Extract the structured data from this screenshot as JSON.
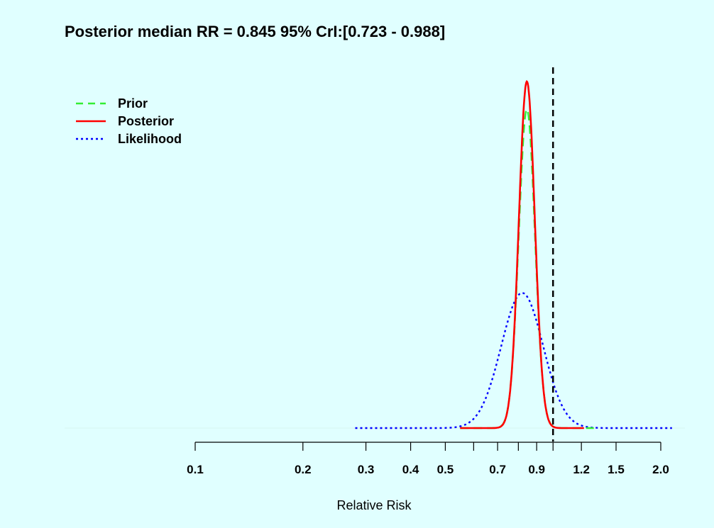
{
  "chart_data": {
    "type": "line",
    "title": "Posterior median RR = 0.845  95% CrI:[0.723 - 0.988]",
    "xlabel": "Relative Risk",
    "ylabel": "",
    "x_scale": "log",
    "xlim": [
      0.1,
      2.0
    ],
    "x_ticks": [
      0.1,
      0.2,
      0.3,
      0.4,
      0.5,
      0.6,
      0.7,
      0.8,
      0.9,
      1.0,
      1.2,
      1.5,
      2.0
    ],
    "x_tick_labels": [
      "0.1",
      "0.2",
      "0.3",
      "0.4",
      "0.5",
      "",
      "0.7",
      "",
      "0.9",
      "",
      "1.2",
      "1.5",
      "2.0"
    ],
    "reference_line": {
      "x": 1.0,
      "style": "dashed",
      "color": "#000000"
    },
    "legend": {
      "placement": "top-left"
    },
    "grid": false,
    "series": [
      {
        "name": "Prior",
        "color": "#33ee33",
        "style": "dashed",
        "center": 0.845,
        "sd_log": 0.052,
        "relative_peak": 0.92,
        "x_range": [
          0.55,
          1.3
        ]
      },
      {
        "name": "Posterior",
        "color": "#ff0000",
        "style": "solid",
        "center": 0.845,
        "sd_log": 0.051,
        "relative_peak": 1.0,
        "x_range": [
          0.55,
          1.22
        ]
      },
      {
        "name": "Likelihood",
        "color": "#0000ff",
        "style": "dotted",
        "center": 0.82,
        "sd_log": 0.135,
        "relative_peak": 0.39,
        "x_range": [
          0.28,
          2.15
        ]
      }
    ]
  }
}
